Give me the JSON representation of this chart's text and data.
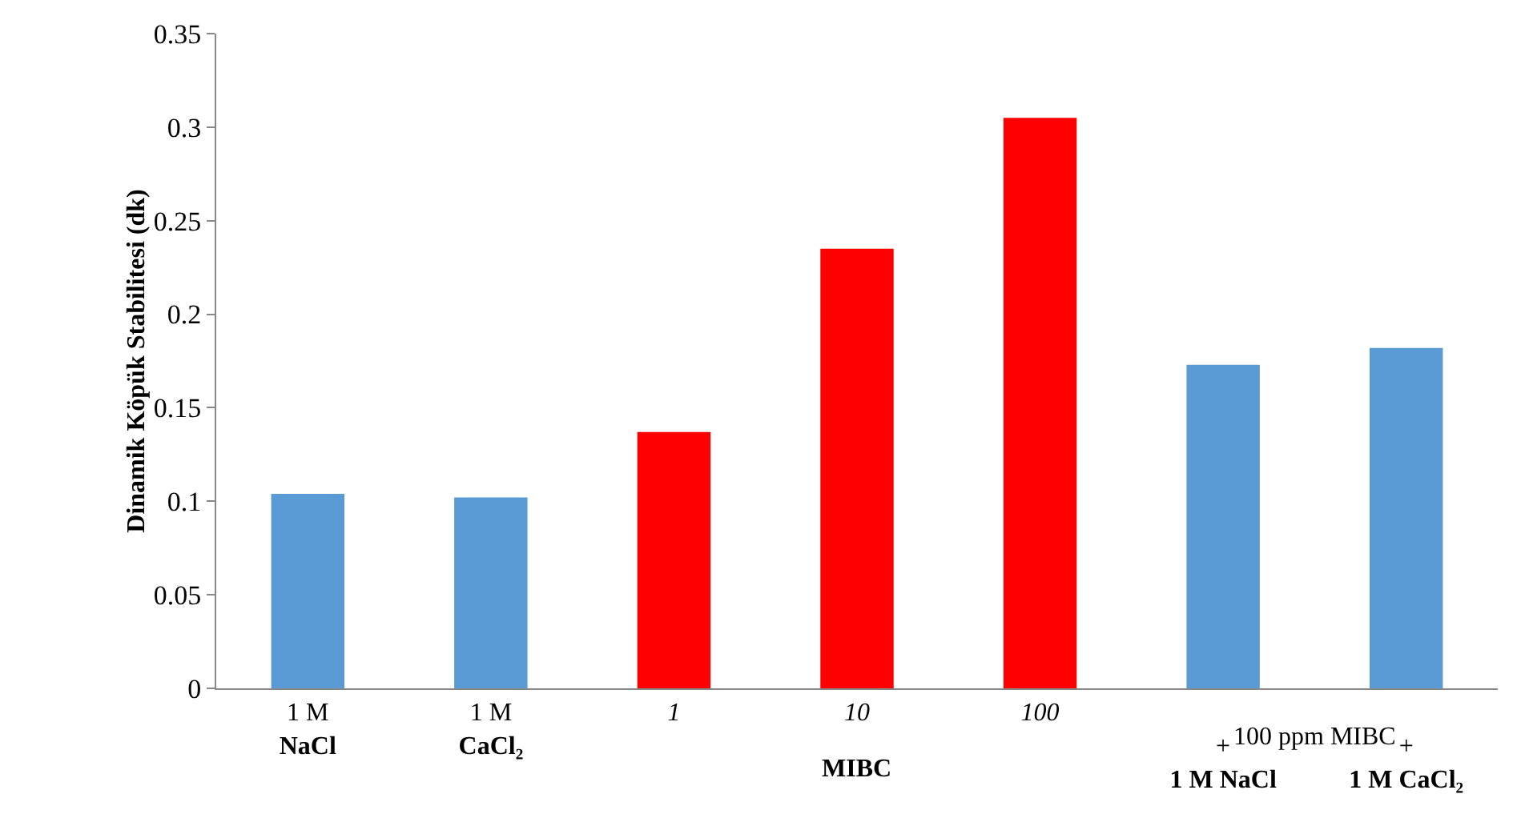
{
  "chart_data": {
    "type": "bar",
    "ylabel": "Dinamik Köpük Stabilitesi (dk)",
    "categories": [
      "1 M\nNaCl",
      "1 M\nCaCl₂",
      "1",
      "10",
      "100",
      "+\n1 M NaCl",
      "+\n1 M CaCl₂"
    ],
    "values": [
      0.104,
      0.102,
      0.137,
      0.235,
      0.305,
      0.173,
      0.182
    ],
    "colors": [
      "#5b9bd5",
      "#5b9bd5",
      "#ff0000",
      "#ff0000",
      "#ff0000",
      "#5b9bd5",
      "#5b9bd5"
    ],
    "annotations": [
      "MIBC",
      "100 ppm MIBC"
    ],
    "ylim": [
      0,
      0.35
    ],
    "yticks": [
      0,
      0.05,
      0.1,
      0.15,
      0.2,
      0.25,
      0.3,
      0.35
    ],
    "grid": false
  }
}
